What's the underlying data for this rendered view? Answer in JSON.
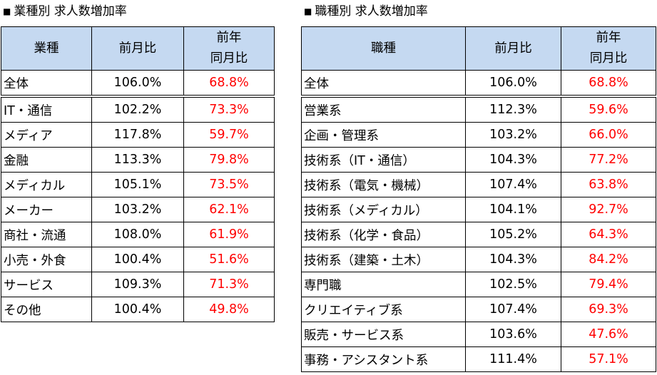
{
  "left": {
    "title": "業種別 求人数増加率",
    "marker": "■",
    "headers": {
      "col1": "業種",
      "col2": "前月比",
      "col3_line1": "前年",
      "col3_line2": "同月比"
    },
    "rows": [
      {
        "name": "全体",
        "mom": "106.0%",
        "yoy": "68.8%"
      },
      {
        "name": "IT・通信",
        "mom": "102.2%",
        "yoy": "73.3%"
      },
      {
        "name": "メディア",
        "mom": "117.8%",
        "yoy": "59.7%"
      },
      {
        "name": "金融",
        "mom": "113.3%",
        "yoy": "79.8%"
      },
      {
        "name": "メディカル",
        "mom": "105.1%",
        "yoy": "73.5%"
      },
      {
        "name": "メーカー",
        "mom": "103.2%",
        "yoy": "62.1%"
      },
      {
        "name": "商社・流通",
        "mom": "108.0%",
        "yoy": "61.9%"
      },
      {
        "name": "小売・外食",
        "mom": "100.4%",
        "yoy": "51.6%"
      },
      {
        "name": "サービス",
        "mom": "109.3%",
        "yoy": "71.3%"
      },
      {
        "name": "その他",
        "mom": "100.4%",
        "yoy": "49.8%"
      }
    ]
  },
  "right": {
    "title": "職種別 求人数増加率",
    "marker": "■",
    "headers": {
      "col1": "職種",
      "col2": "前月比",
      "col3_line1": "前年",
      "col3_line2": "同月比"
    },
    "rows": [
      {
        "name": "全体",
        "mom": "106.0%",
        "yoy": "68.8%"
      },
      {
        "name": "営業系",
        "mom": "112.3%",
        "yoy": "59.6%"
      },
      {
        "name": "企画・管理系",
        "mom": "103.2%",
        "yoy": "66.0%"
      },
      {
        "name": "技術系（IT・通信）",
        "mom": "104.3%",
        "yoy": "77.2%"
      },
      {
        "name": "技術系（電気・機械）",
        "mom": "107.4%",
        "yoy": "63.8%"
      },
      {
        "name": "技術系（メディカル）",
        "mom": "104.1%",
        "yoy": "92.7%"
      },
      {
        "name": "技術系（化学・食品）",
        "mom": "105.2%",
        "yoy": "64.3%"
      },
      {
        "name": "技術系（建築・土木）",
        "mom": "104.3%",
        "yoy": "84.2%"
      },
      {
        "name": "専門職",
        "mom": "102.5%",
        "yoy": "79.4%"
      },
      {
        "name": "クリエイティブ系",
        "mom": "107.4%",
        "yoy": "69.3%"
      },
      {
        "name": "販売・サービス系",
        "mom": "103.6%",
        "yoy": "47.6%"
      },
      {
        "name": "事務・アシスタント系",
        "mom": "111.4%",
        "yoy": "57.1%"
      }
    ],
    "colors": {
      "header_bg": "#c5d9f1",
      "yoy_text": "#ff0000"
    }
  }
}
